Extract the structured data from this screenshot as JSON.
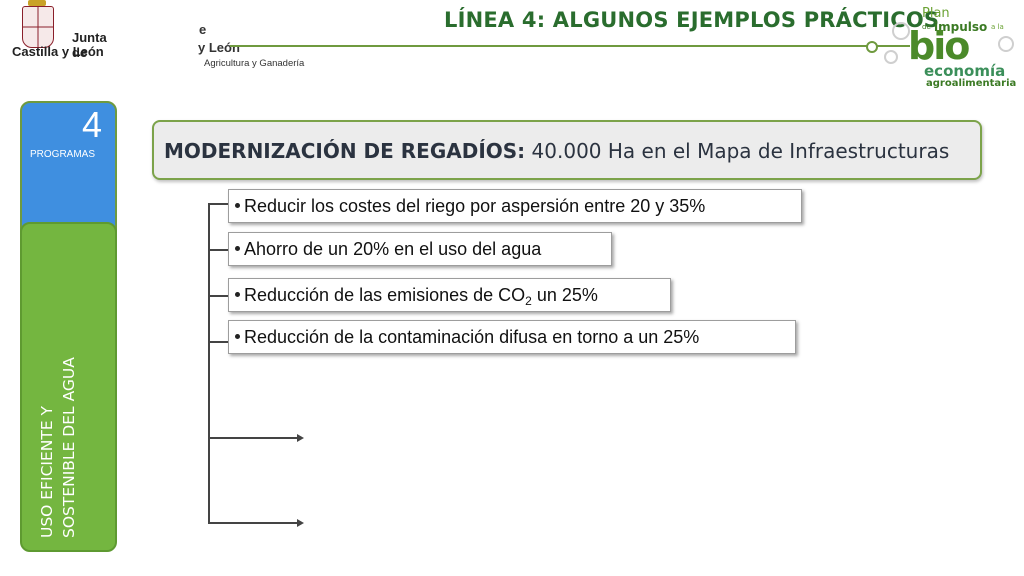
{
  "header": {
    "org_line1": "Junta de",
    "org_line2": "Castilla y León",
    "dept_fragment": "e",
    "dept_line1": "y León",
    "dept_line2": "Agricultura y Ganadería",
    "title": "LÍNEA 4: ALGUNOS EJEMPLOS PRÁCTICOS"
  },
  "brand_logo": {
    "plan": "Plan",
    "de": "de",
    "impulso": "impulso",
    "a_la": "a la",
    "bio": "bio",
    "economia": "economía",
    "agroalimentaria": "agroalimentaria"
  },
  "left_panel": {
    "programs_count": "4",
    "programs_label": "PROGRAMAS",
    "section_line1": "USO EFICIENTE Y",
    "section_line2": "SOSTENIBLE DEL AGUA"
  },
  "main": {
    "heading_bold": "MODERNIZACIÓN DE REGADÍOS:",
    "heading_rest": " 40.000 Ha en el Mapa de Infraestructuras",
    "items": [
      {
        "text": "Reducir los costes del riego por aspersión entre 20 y 35%"
      },
      {
        "text": "Ahorro de un 20% en el uso del agua"
      },
      {
        "text_before": "Reducción de las emisiones de CO",
        "subscript": "2",
        "text_after": " un 25%"
      },
      {
        "text": "Reducción de la contaminación difusa en torno a un 25%"
      }
    ]
  },
  "colors": {
    "title_green": "#2a6d2e",
    "panel_blue": "#3f8fe0",
    "panel_green": "#74b640",
    "accent_line": "#6f9a3f"
  }
}
